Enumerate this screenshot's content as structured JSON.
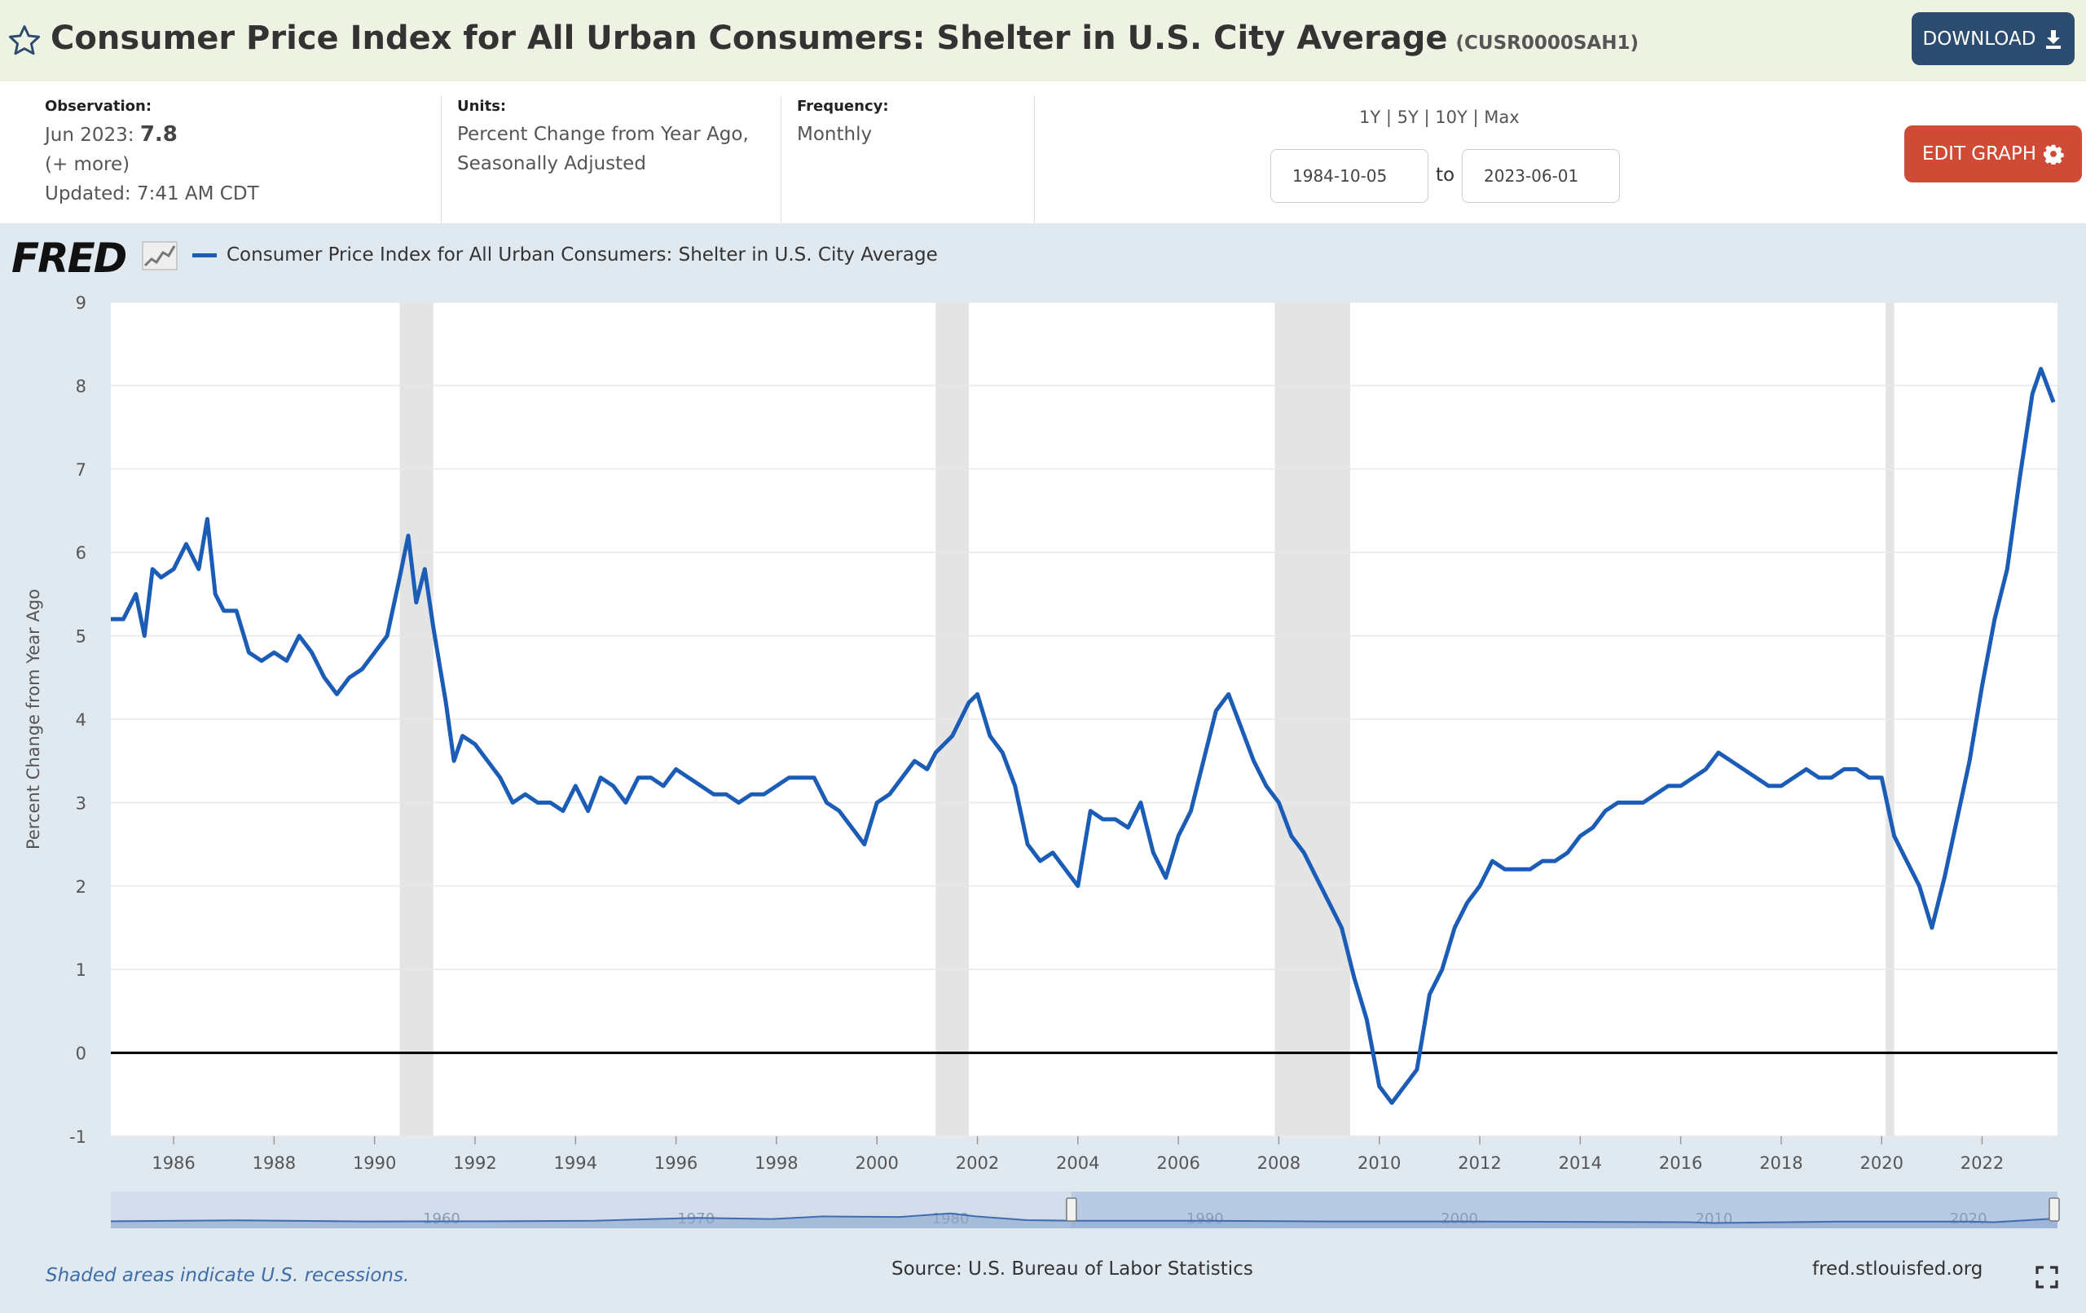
{
  "header": {
    "title": "Consumer Price Index for All Urban Consumers: Shelter in U.S. City Average",
    "series_id": "(CUSR0000SAH1)",
    "download_label": "DOWNLOAD"
  },
  "info": {
    "observation_label": "Observation:",
    "observation_date": "Jun 2023:",
    "observation_value": "7.8",
    "more": "(+ more)",
    "updated": "Updated: 7:41 AM CDT",
    "units_label": "Units:",
    "units_line1": "Percent Change from Year Ago,",
    "units_line2": "Seasonally Adjusted",
    "frequency_label": "Frequency:",
    "frequency_value": "Monthly",
    "range_links": "1Y | 5Y | 10Y | Max",
    "date_start": "1984-10-05",
    "date_to": "to",
    "date_end": "2023-06-01",
    "edit_label": "EDIT GRAPH"
  },
  "brand": {
    "logo_text": "FRED"
  },
  "footer": {
    "note": "Shaded areas indicate U.S. recessions.",
    "source": "Source: U.S. Bureau of Labor Statistics",
    "url": "fred.stlouisfed.org"
  },
  "colors": {
    "series": "#1b5cb7",
    "recession": "#e4e4e4",
    "edit": "#cf4b36",
    "download": "#2b4c6f"
  },
  "chart_data": {
    "type": "line",
    "ylabel": "Percent Change from Year Ago",
    "ylim": [
      -1,
      9
    ],
    "yticks": [
      -1,
      0,
      1,
      2,
      3,
      4,
      5,
      6,
      7,
      8,
      9
    ],
    "xlim": [
      1984.75,
      2023.5
    ],
    "xticks": [
      "1986",
      "1988",
      "1990",
      "1992",
      "1994",
      "1996",
      "1998",
      "2000",
      "2002",
      "2004",
      "2006",
      "2008",
      "2010",
      "2012",
      "2014",
      "2016",
      "2018",
      "2020",
      "2022"
    ],
    "recessions": [
      [
        1990.5,
        1991.17
      ],
      [
        2001.17,
        2001.83
      ],
      [
        2007.92,
        2009.42
      ],
      [
        2020.08,
        2020.25
      ]
    ],
    "navigator_ticks": [
      "1960",
      "1970",
      "1980",
      "1990",
      "2000",
      "2010",
      "2020"
    ],
    "series": [
      {
        "name": "Consumer Price Index for All Urban Consumers: Shelter in U.S. City Average",
        "points": [
          [
            1984.75,
            5.2
          ],
          [
            1985.0,
            5.2
          ],
          [
            1985.25,
            5.5
          ],
          [
            1985.42,
            5.0
          ],
          [
            1985.58,
            5.8
          ],
          [
            1985.75,
            5.7
          ],
          [
            1986.0,
            5.8
          ],
          [
            1986.25,
            6.1
          ],
          [
            1986.5,
            5.8
          ],
          [
            1986.67,
            6.4
          ],
          [
            1986.83,
            5.5
          ],
          [
            1987.0,
            5.3
          ],
          [
            1987.25,
            5.3
          ],
          [
            1987.5,
            4.8
          ],
          [
            1987.75,
            4.7
          ],
          [
            1988.0,
            4.8
          ],
          [
            1988.25,
            4.7
          ],
          [
            1988.5,
            5.0
          ],
          [
            1988.75,
            4.8
          ],
          [
            1989.0,
            4.5
          ],
          [
            1989.25,
            4.3
          ],
          [
            1989.5,
            4.5
          ],
          [
            1989.75,
            4.6
          ],
          [
            1990.0,
            4.8
          ],
          [
            1990.25,
            5.0
          ],
          [
            1990.5,
            5.7
          ],
          [
            1990.67,
            6.2
          ],
          [
            1990.83,
            5.4
          ],
          [
            1991.0,
            5.8
          ],
          [
            1991.17,
            5.1
          ],
          [
            1991.42,
            4.2
          ],
          [
            1991.58,
            3.5
          ],
          [
            1991.75,
            3.8
          ],
          [
            1992.0,
            3.7
          ],
          [
            1992.25,
            3.5
          ],
          [
            1992.5,
            3.3
          ],
          [
            1992.75,
            3.0
          ],
          [
            1993.0,
            3.1
          ],
          [
            1993.25,
            3.0
          ],
          [
            1993.5,
            3.0
          ],
          [
            1993.75,
            2.9
          ],
          [
            1994.0,
            3.2
          ],
          [
            1994.25,
            2.9
          ],
          [
            1994.5,
            3.3
          ],
          [
            1994.75,
            3.2
          ],
          [
            1995.0,
            3.0
          ],
          [
            1995.25,
            3.3
          ],
          [
            1995.5,
            3.3
          ],
          [
            1995.75,
            3.2
          ],
          [
            1996.0,
            3.4
          ],
          [
            1996.25,
            3.3
          ],
          [
            1996.5,
            3.2
          ],
          [
            1996.75,
            3.1
          ],
          [
            1997.0,
            3.1
          ],
          [
            1997.25,
            3.0
          ],
          [
            1997.5,
            3.1
          ],
          [
            1997.75,
            3.1
          ],
          [
            1998.0,
            3.2
          ],
          [
            1998.25,
            3.3
          ],
          [
            1998.5,
            3.3
          ],
          [
            1998.75,
            3.3
          ],
          [
            1999.0,
            3.0
          ],
          [
            1999.25,
            2.9
          ],
          [
            1999.5,
            2.7
          ],
          [
            1999.75,
            2.5
          ],
          [
            2000.0,
            3.0
          ],
          [
            2000.25,
            3.1
          ],
          [
            2000.5,
            3.3
          ],
          [
            2000.75,
            3.5
          ],
          [
            2001.0,
            3.4
          ],
          [
            2001.17,
            3.6
          ],
          [
            2001.5,
            3.8
          ],
          [
            2001.83,
            4.2
          ],
          [
            2002.0,
            4.3
          ],
          [
            2002.25,
            3.8
          ],
          [
            2002.5,
            3.6
          ],
          [
            2002.75,
            3.2
          ],
          [
            2003.0,
            2.5
          ],
          [
            2003.25,
            2.3
          ],
          [
            2003.5,
            2.4
          ],
          [
            2003.75,
            2.2
          ],
          [
            2004.0,
            2.0
          ],
          [
            2004.25,
            2.9
          ],
          [
            2004.5,
            2.8
          ],
          [
            2004.75,
            2.8
          ],
          [
            2005.0,
            2.7
          ],
          [
            2005.25,
            3.0
          ],
          [
            2005.5,
            2.4
          ],
          [
            2005.75,
            2.1
          ],
          [
            2006.0,
            2.6
          ],
          [
            2006.25,
            2.9
          ],
          [
            2006.5,
            3.5
          ],
          [
            2006.75,
            4.1
          ],
          [
            2007.0,
            4.3
          ],
          [
            2007.25,
            3.9
          ],
          [
            2007.5,
            3.5
          ],
          [
            2007.75,
            3.2
          ],
          [
            2008.0,
            3.0
          ],
          [
            2008.25,
            2.6
          ],
          [
            2008.5,
            2.4
          ],
          [
            2008.75,
            2.1
          ],
          [
            2009.0,
            1.8
          ],
          [
            2009.25,
            1.5
          ],
          [
            2009.5,
            0.9
          ],
          [
            2009.75,
            0.4
          ],
          [
            2010.0,
            -0.4
          ],
          [
            2010.25,
            -0.6
          ],
          [
            2010.5,
            -0.4
          ],
          [
            2010.75,
            -0.2
          ],
          [
            2011.0,
            0.7
          ],
          [
            2011.25,
            1.0
          ],
          [
            2011.5,
            1.5
          ],
          [
            2011.75,
            1.8
          ],
          [
            2012.0,
            2.0
          ],
          [
            2012.25,
            2.3
          ],
          [
            2012.5,
            2.2
          ],
          [
            2012.75,
            2.2
          ],
          [
            2013.0,
            2.2
          ],
          [
            2013.25,
            2.3
          ],
          [
            2013.5,
            2.3
          ],
          [
            2013.75,
            2.4
          ],
          [
            2014.0,
            2.6
          ],
          [
            2014.25,
            2.7
          ],
          [
            2014.5,
            2.9
          ],
          [
            2014.75,
            3.0
          ],
          [
            2015.0,
            3.0
          ],
          [
            2015.25,
            3.0
          ],
          [
            2015.5,
            3.1
          ],
          [
            2015.75,
            3.2
          ],
          [
            2016.0,
            3.2
          ],
          [
            2016.25,
            3.3
          ],
          [
            2016.5,
            3.4
          ],
          [
            2016.75,
            3.6
          ],
          [
            2017.0,
            3.5
          ],
          [
            2017.25,
            3.4
          ],
          [
            2017.5,
            3.3
          ],
          [
            2017.75,
            3.2
          ],
          [
            2018.0,
            3.2
          ],
          [
            2018.25,
            3.3
          ],
          [
            2018.5,
            3.4
          ],
          [
            2018.75,
            3.3
          ],
          [
            2019.0,
            3.3
          ],
          [
            2019.25,
            3.4
          ],
          [
            2019.5,
            3.4
          ],
          [
            2019.75,
            3.3
          ],
          [
            2020.0,
            3.3
          ],
          [
            2020.25,
            2.6
          ],
          [
            2020.5,
            2.3
          ],
          [
            2020.75,
            2.0
          ],
          [
            2021.0,
            1.5
          ],
          [
            2021.25,
            2.1
          ],
          [
            2021.5,
            2.8
          ],
          [
            2021.75,
            3.5
          ],
          [
            2022.0,
            4.4
          ],
          [
            2022.25,
            5.2
          ],
          [
            2022.5,
            5.8
          ],
          [
            2022.75,
            6.9
          ],
          [
            2023.0,
            7.9
          ],
          [
            2023.17,
            8.2
          ],
          [
            2023.42,
            7.8
          ]
        ]
      }
    ]
  }
}
